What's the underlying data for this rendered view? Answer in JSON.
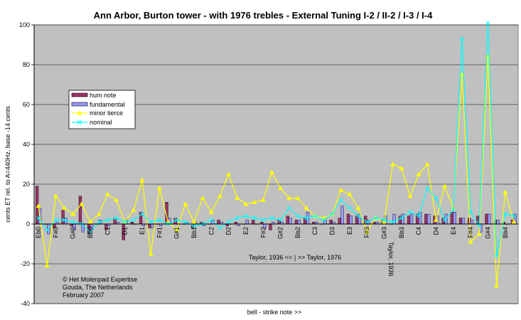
{
  "chart_data": {
    "type": "bar",
    "title": "Ann Arbor, Burton tower - with 1976 trebles - External Tuning I-2 / II-2 / I-3 / I-4",
    "xlabel": "bell - strike note >>",
    "ylabel": "cents ET rel. to A=440Hz, base -14 cents",
    "ylim": [
      -40,
      100
    ],
    "yticks": [
      -40,
      -20,
      0,
      20,
      40,
      60,
      80,
      100
    ],
    "grid": "horizontal",
    "legend_position": "left",
    "categories": [
      "Eb0",
      "E0",
      "F0",
      "F#0",
      "G0",
      "G#0",
      "A0",
      "Bb0",
      "B0",
      "C1",
      "C#1",
      "D1",
      "Eb1",
      "E1",
      "F1",
      "F#1",
      "G1",
      "G#1",
      "A1",
      "Bb1",
      "B1",
      "C2",
      "C#2",
      "D2",
      "Eb2",
      "E2",
      "F2",
      "F#2",
      "G2",
      "G#2",
      "A2",
      "Bb2",
      "B2",
      "C3",
      "C#3",
      "D3",
      "Eb3",
      "E3",
      "F3",
      "F#3",
      "G3",
      "G#3",
      "A3",
      "Bb3",
      "B3",
      "C4",
      "C#4",
      "D4",
      "Eb4",
      "E4",
      "F4",
      "F#4",
      "G4",
      "G#4",
      "A4",
      "Bb4"
    ],
    "x_tick_labels": [
      "Eb0",
      "F#0",
      "G#0",
      "Bb0",
      "C1",
      "D1",
      "E1",
      "F#1",
      "G#1",
      "Bb1",
      "C2",
      "D2",
      "E2",
      "F#2",
      "G#2",
      "Bb2",
      "C3",
      "D3",
      "E3",
      "F#3",
      "G#3",
      "Bb3",
      "C4",
      "D4",
      "E4",
      "F#4",
      "G#4",
      "Bb4"
    ],
    "series": [
      {
        "name": "hum note",
        "type": "bar",
        "color": "#993366",
        "values": [
          19,
          0,
          -2,
          7,
          -1,
          14,
          -5,
          0,
          -3,
          3,
          -8,
          1,
          6,
          -2,
          0,
          11,
          3,
          0,
          -2,
          1,
          0,
          2,
          -1,
          1,
          0,
          2,
          1,
          -3,
          2,
          4,
          2,
          3,
          1,
          0,
          2,
          3,
          5,
          4,
          4,
          1,
          2,
          0,
          4,
          4,
          5,
          5,
          4,
          3,
          6,
          3,
          3,
          4,
          5,
          2,
          1,
          2
        ]
      },
      {
        "name": "fundamental",
        "type": "bar",
        "color": "#9999ff",
        "values": [
          8,
          -5,
          1,
          3,
          -3,
          -4,
          -3,
          2,
          -1,
          1,
          2,
          0,
          -1,
          -2,
          -1,
          3,
          0,
          1,
          1,
          -1,
          2,
          1,
          0,
          -1,
          2,
          0,
          -2,
          1,
          1,
          3,
          2,
          6,
          1,
          2,
          1,
          9,
          4,
          5,
          2,
          1,
          4,
          5,
          5,
          5,
          6,
          5,
          4,
          5,
          6,
          3,
          2,
          -4,
          5,
          2,
          0,
          5
        ]
      },
      {
        "name": "minor tierce",
        "type": "line",
        "color": "#ffff00",
        "values": [
          9,
          -21,
          14,
          8,
          5,
          10,
          1,
          5,
          15,
          12,
          1,
          7,
          22,
          -15,
          18,
          1,
          -3,
          10,
          1,
          13,
          6,
          14,
          25,
          13,
          10,
          11,
          12,
          26,
          18,
          13,
          13,
          8,
          4,
          3,
          5,
          17,
          15,
          8,
          -4,
          3,
          1,
          30,
          28,
          14,
          25,
          30,
          2,
          19,
          8,
          75,
          -9,
          -5,
          84,
          -31,
          16,
          1
        ]
      },
      {
        "name": "nominal",
        "type": "line",
        "color": "#00ffff",
        "values": [
          3,
          -3,
          2,
          2,
          1,
          0,
          -4,
          1,
          2,
          3,
          1,
          2,
          5,
          1,
          2,
          0,
          2,
          1,
          -1,
          0,
          2,
          -2,
          1,
          3,
          4,
          3,
          2,
          3,
          2,
          8,
          4,
          3,
          4,
          2,
          5,
          12,
          8,
          4,
          1,
          3,
          2,
          1,
          3,
          6,
          4,
          18,
          13,
          2,
          7,
          93,
          6,
          -1,
          101,
          -16,
          5,
          4
        ]
      }
    ],
    "annotations": {
      "taylor_range": "Taylor, 1936 << | >>  Taylor, 1976",
      "taylor_vertical": "Taylor, 1936",
      "copyright": [
        "© Het Molenpad Expertise",
        "Gouda, The Netherlands",
        "February 2007"
      ]
    }
  },
  "colors": {
    "plot_background": "#c0c0c0",
    "hum_note": "#993366",
    "fundamental": "#9999ff",
    "minor_tierce": "#ffff00",
    "nominal": "#00ffff"
  }
}
